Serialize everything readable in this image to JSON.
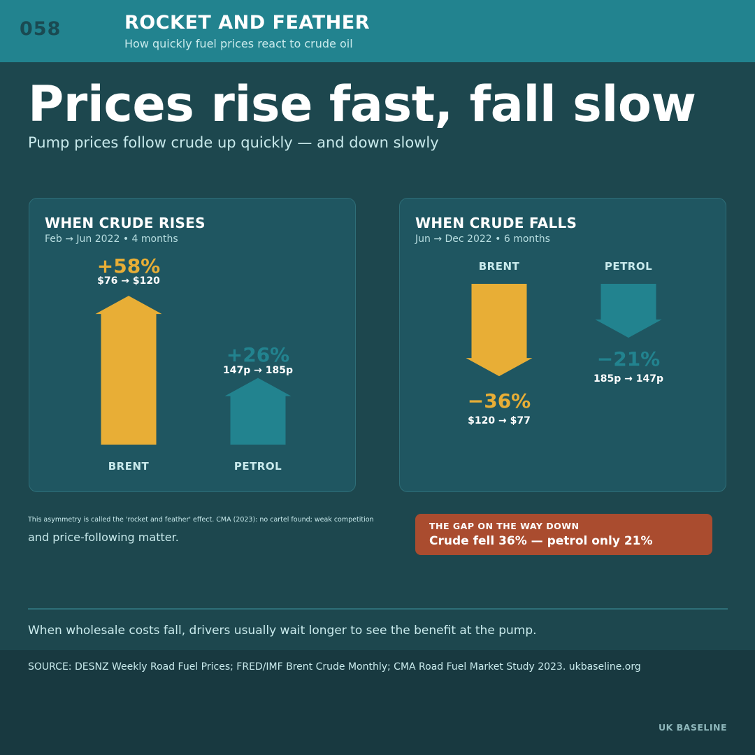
{
  "header": {
    "issue": "058",
    "title": "ROCKET AND FEATHER",
    "subtitle": "How quickly fuel prices react to crude oil"
  },
  "headline": "Prices rise fast, fall slow",
  "subheadline": "Pump prices follow crude up quickly — and down slowly",
  "colors": {
    "brent": "#e8ae36",
    "petrol": "#22838f",
    "callout": "#aa4c2f",
    "background": "#1d474e"
  },
  "chart_data": [
    {
      "type": "bar",
      "title": "WHEN CRUDE RISES",
      "subtitle": "Feb → Jun 2022 • 4 months",
      "categories": [
        "BRENT",
        "PETROL"
      ],
      "series": [
        {
          "values": [
            58,
            26
          ]
        }
      ],
      "value_labels": [
        "+58%",
        "+26%"
      ],
      "range_labels": [
        "$76 → $120",
        "147p → 185p"
      ],
      "direction": "up"
    },
    {
      "type": "bar",
      "title": "WHEN CRUDE FALLS",
      "subtitle": "Jun → Dec 2022 • 6 months",
      "categories": [
        "BRENT",
        "PETROL"
      ],
      "series": [
        {
          "values": [
            -36,
            -21
          ]
        }
      ],
      "value_labels": [
        "−36%",
        "−21%"
      ],
      "range_labels": [
        "$120 → $77",
        "185p → 147p"
      ],
      "direction": "down"
    }
  ],
  "note": {
    "line1": "This asymmetry is called the 'rocket and feather' effect. CMA (2023): no cartel found; weak competition",
    "line2": "and price-following matter."
  },
  "callout": {
    "kicker": "THE GAP ON THE WAY DOWN",
    "text": "Crude fell 36% — petrol only 21%"
  },
  "footnote": "When wholesale costs fall, drivers usually wait longer to see the benefit at the pump.",
  "source": "SOURCE: DESNZ Weekly Road Fuel Prices; FRED/IMF Brent Crude Monthly; CMA Road Fuel Market Study 2023. ukbaseline.org",
  "brand": "UK BASELINE"
}
